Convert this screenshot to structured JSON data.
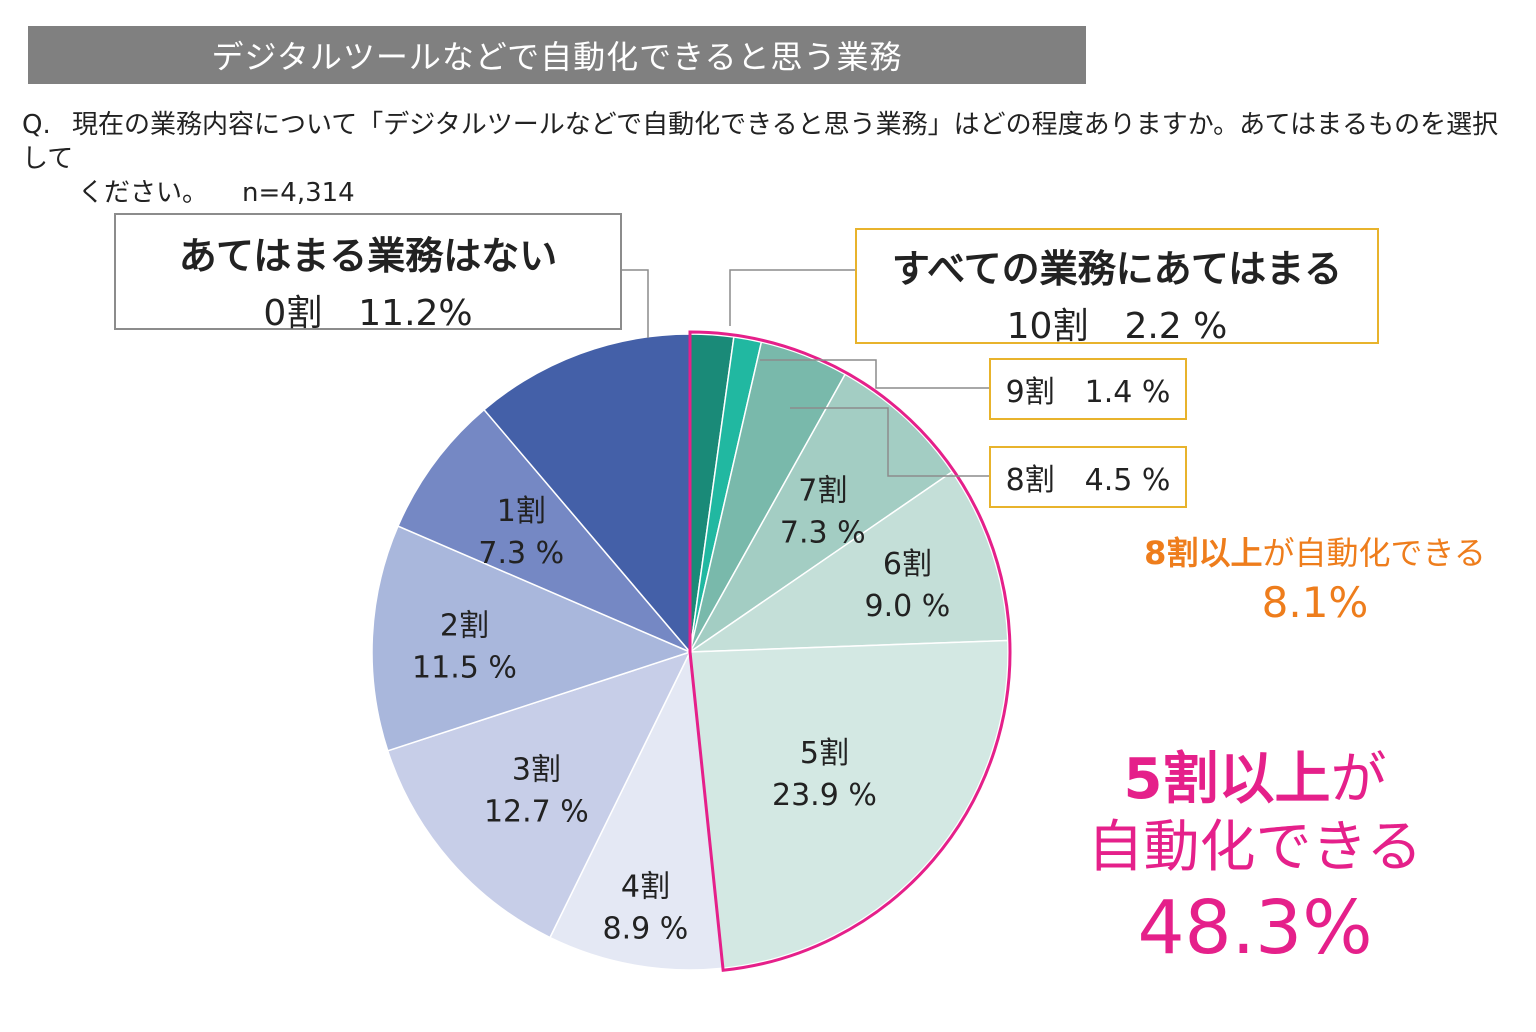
{
  "header": {
    "title": "デジタルツールなどで自動化できると思う業務"
  },
  "question": {
    "prefix": "Q.",
    "line1": "現在の業務内容について「デジタルツールなどで自動化できると思う業務」はどの程度ありますか。あてはまるものを選択して",
    "line2": "ください。",
    "n": "n=4,314"
  },
  "callouts": {
    "none": {
      "title": "あてはまる業務はない",
      "value": "0割　11.2%"
    },
    "all": {
      "title": "すべての業務にあてはまる",
      "value": "10割　2.2 %"
    },
    "nine": "9割　1.4 %",
    "eight": "8割　4.5 %"
  },
  "summary_8": {
    "bold": "8割以上",
    "rest": "が自動化できる",
    "value": "8.1%"
  },
  "summary_5": {
    "bold": "5割以上",
    "rest": "が",
    "line2": "自動化できる",
    "value": "48.3%"
  },
  "chart_data": {
    "type": "pie",
    "start": "12 o'clock, clockwise",
    "slices": [
      {
        "label": "10割",
        "value": 2.2,
        "color": "#1a8a78"
      },
      {
        "label": "9割",
        "value": 1.4,
        "color": "#21b8a1"
      },
      {
        "label": "8割",
        "value": 4.5,
        "color": "#79b9ab"
      },
      {
        "label": "7割",
        "value": 7.3,
        "value_text": "7.3 %",
        "color": "#a3cdc3"
      },
      {
        "label": "6割",
        "value": 9.0,
        "value_text": "9.0 %",
        "color": "#c4dfd8"
      },
      {
        "label": "5割",
        "value": 23.9,
        "value_text": "23.9 %",
        "color": "#d3e8e3"
      },
      {
        "label": "4割",
        "value": 8.9,
        "value_text": "8.9 %",
        "color": "#e4e8f4"
      },
      {
        "label": "3割",
        "value": 12.7,
        "value_text": "12.7 %",
        "color": "#c7cee8"
      },
      {
        "label": "2割",
        "value": 11.5,
        "value_text": "11.5 %",
        "color": "#a9b7dc"
      },
      {
        "label": "1割",
        "value": 7.3,
        "value_text": "7.3 %",
        "color": "#7588c4"
      },
      {
        "label": "0割",
        "value": 11.2,
        "color": "#4460a8"
      }
    ],
    "highlight": {
      "from": "10割",
      "to": "5割",
      "color": "#e5208a"
    },
    "leader_color": "#8c8c8c"
  }
}
